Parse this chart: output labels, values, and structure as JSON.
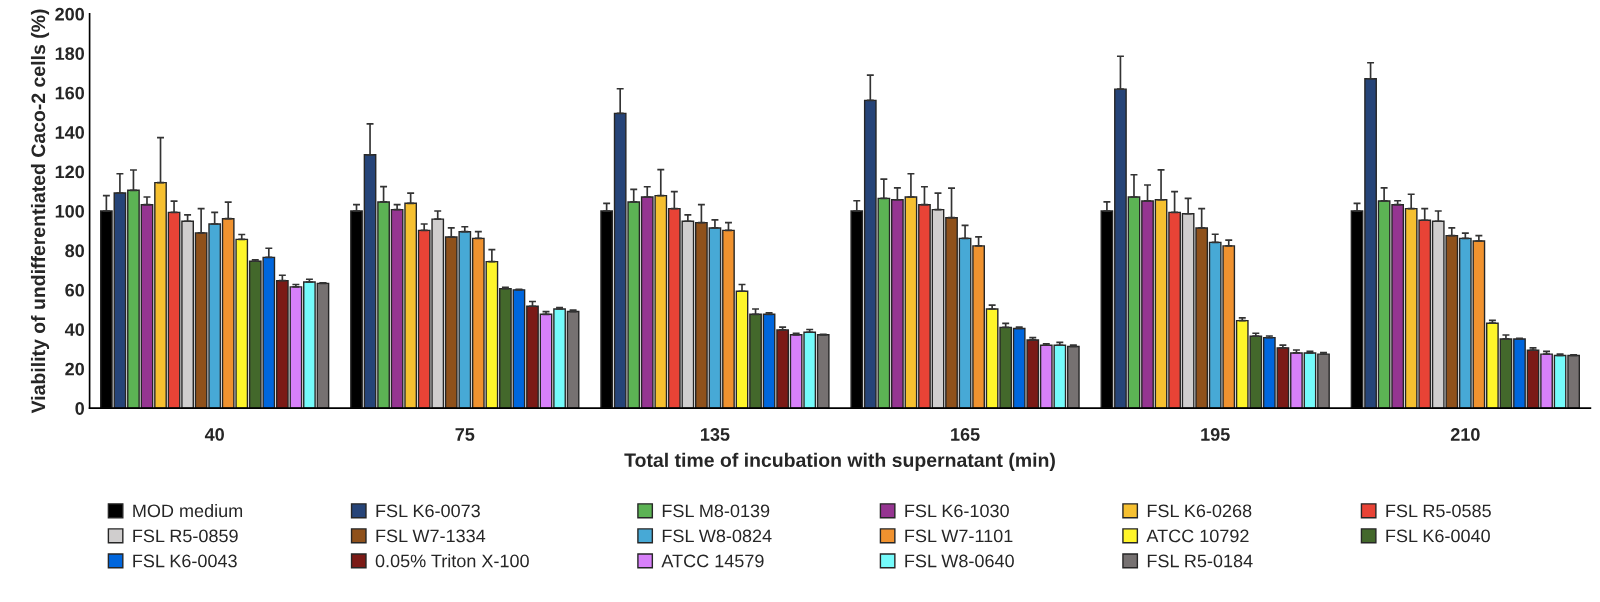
{
  "chart_data": {
    "type": "bar",
    "xlabel": "Total time of incubation with supernatant (min)",
    "ylabel": "Viability of undifferentiated Caco-2 cells (%)",
    "categories": [
      "40",
      "75",
      "135",
      "165",
      "195",
      "210"
    ],
    "ylim": [
      0,
      200
    ],
    "yticks": [
      0,
      20,
      40,
      60,
      80,
      100,
      120,
      140,
      160,
      180,
      200
    ],
    "grid": false,
    "legend": "bottom",
    "series": [
      {
        "name": "MOD medium",
        "color": "#000000",
        "values": [
          100,
          100,
          100,
          100,
          100,
          100
        ],
        "errors": [
          [
            100,
            107.8
          ],
          [
            100,
            103.2
          ],
          [
            100,
            103.9
          ],
          [
            100,
            105.2
          ],
          [
            100,
            104.6
          ],
          [
            100,
            103.9
          ]
        ]
      },
      {
        "name": "FSL K6-0073",
        "color": "#264478",
        "values": [
          109.1,
          128.5,
          149.5,
          156.1,
          161.8,
          167.1
        ],
        "errors": [
          [
            109.1,
            118.9
          ],
          [
            128.5,
            144.2
          ],
          [
            149.5,
            162.0
          ],
          [
            156.1,
            168.9
          ],
          [
            161.8,
            178.5
          ],
          [
            167.1,
            175.2
          ]
        ]
      },
      {
        "name": "FSL M8-0139",
        "color": "#5cb354",
        "values": [
          110.5,
          104.6,
          104.6,
          106.4,
          107.1,
          105.1
        ],
        "errors": [
          [
            110.5,
            120.8
          ],
          [
            104.6,
            112.4
          ],
          [
            104.6,
            111.0
          ],
          [
            106.4,
            116.2
          ],
          [
            107.1,
            118.4
          ],
          [
            105.1,
            111.7
          ]
        ]
      },
      {
        "name": "FSL K6-1030",
        "color": "#953591",
        "values": [
          103.2,
          100.7,
          107.1,
          105.7,
          105.1,
          103.2
        ],
        "errors": [
          [
            103.2,
            107.1
          ],
          [
            100.7,
            103.2
          ],
          [
            107.1,
            112.3
          ],
          [
            105.7,
            111.7
          ],
          [
            105.1,
            113.2
          ],
          [
            103.2,
            105.2
          ]
        ]
      },
      {
        "name": "FSL K6-0268",
        "color": "#f6c030",
        "values": [
          114.4,
          103.9,
          107.8,
          107.1,
          105.7,
          101.2
        ],
        "errors": [
          [
            114.4,
            137.2
          ],
          [
            103.9,
            109.1
          ],
          [
            107.8,
            121.0
          ],
          [
            107.1,
            118.9
          ],
          [
            105.7,
            120.9
          ],
          [
            101.2,
            108.5
          ]
        ]
      },
      {
        "name": "FSL R5-0585",
        "color": "#e84336",
        "values": [
          99.3,
          90.2,
          101.2,
          103.2,
          99.3,
          95.3
        ],
        "errors": [
          [
            99.3,
            105.0
          ],
          [
            90.2,
            93.4
          ],
          [
            101.2,
            109.8
          ],
          [
            103.2,
            112.3
          ],
          [
            99.3,
            109.8
          ],
          [
            95.3,
            101.2
          ]
        ]
      },
      {
        "name": "FSL R5-0859",
        "color": "#d0cece",
        "values": [
          94.8,
          95.9,
          94.8,
          100.7,
          98.6,
          94.8
        ],
        "errors": [
          [
            94.8,
            98.0
          ],
          [
            95.9,
            100.0
          ],
          [
            94.8,
            98.0
          ],
          [
            100.7,
            109.1
          ],
          [
            98.6,
            106.4
          ],
          [
            94.8,
            100.0
          ]
        ]
      },
      {
        "name": "FSL W7-1334",
        "color": "#8f511b",
        "values": [
          88.9,
          86.8,
          94.1,
          96.6,
          91.4,
          87.5
        ],
        "errors": [
          [
            88.9,
            101.2
          ],
          [
            86.8,
            91.4
          ],
          [
            94.1,
            103.2
          ],
          [
            96.6,
            111.6
          ],
          [
            91.4,
            101.2
          ],
          [
            87.5,
            91.4
          ]
        ]
      },
      {
        "name": "FSL W8-0824",
        "color": "#47a9d6",
        "values": [
          93.4,
          89.5,
          91.4,
          86.1,
          84.1,
          86.1
        ],
        "errors": [
          [
            93.4,
            99.3
          ],
          [
            89.5,
            92.0
          ],
          [
            91.4,
            95.5
          ],
          [
            86.1,
            92.7
          ],
          [
            84.1,
            88.2
          ],
          [
            86.1,
            88.8
          ]
        ]
      },
      {
        "name": "FSL W7-1101",
        "color": "#f0922f",
        "values": [
          96.1,
          86.1,
          90.2,
          82.3,
          82.3,
          84.8
        ],
        "errors": [
          [
            96.1,
            104.5
          ],
          [
            86.1,
            89.5
          ],
          [
            90.2,
            94.1
          ],
          [
            82.3,
            86.9
          ],
          [
            82.3,
            85.2
          ],
          [
            84.8,
            87.5
          ]
        ]
      },
      {
        "name": "ATCC 10792",
        "color": "#fff52a",
        "values": [
          85.6,
          74.3,
          59.3,
          50.3,
          44.4,
          43.1
        ],
        "errors": [
          [
            85.6,
            88.1
          ],
          [
            74.3,
            80.4
          ],
          [
            59.3,
            62.7
          ],
          [
            50.3,
            52.3
          ],
          [
            44.4,
            45.8
          ],
          [
            43.1,
            44.5
          ]
        ]
      },
      {
        "name": "FSL K6-0040",
        "color": "#43682b",
        "values": [
          74.5,
          60.6,
          47.6,
          41.0,
          36.5,
          35.1
        ],
        "errors": [
          [
            74.5,
            75.2
          ],
          [
            60.6,
            61.3
          ],
          [
            47.6,
            50.3
          ],
          [
            41.0,
            43.0
          ],
          [
            36.5,
            38.0
          ],
          [
            35.1,
            37.1
          ]
        ]
      },
      {
        "name": "FSL K6-0043",
        "color": "#0066dd",
        "values": [
          76.5,
          60.0,
          47.6,
          40.4,
          35.8,
          35.1
        ],
        "errors": [
          [
            76.5,
            81.1
          ],
          [
            60.0,
            60.3
          ],
          [
            47.6,
            48.3
          ],
          [
            40.4,
            41.1
          ],
          [
            35.8,
            36.6
          ],
          [
            35.1,
            35.4
          ]
        ]
      },
      {
        "name": "0.05% Triton X-100",
        "color": "#7b1a16",
        "values": [
          64.7,
          51.7,
          39.7,
          34.6,
          30.6,
          29.4
        ],
        "errors": [
          [
            64.7,
            67.4
          ],
          [
            51.7,
            54.1
          ],
          [
            39.7,
            41.1
          ],
          [
            34.6,
            35.8
          ],
          [
            30.6,
            32.0
          ],
          [
            29.4,
            30.6
          ]
        ]
      },
      {
        "name": "ATCC 14579",
        "color": "#d780f9",
        "values": [
          61.5,
          47.6,
          37.2,
          31.9,
          28.0,
          27.4
        ],
        "errors": [
          [
            61.5,
            62.7
          ],
          [
            47.6,
            49.0
          ],
          [
            37.2,
            38.0
          ],
          [
            31.9,
            32.6
          ],
          [
            28.0,
            29.5
          ],
          [
            27.4,
            28.8
          ]
        ]
      },
      {
        "name": "FSL W8-0640",
        "color": "#75fbfb",
        "values": [
          64.0,
          50.3,
          38.5,
          31.9,
          28.0,
          26.7
        ],
        "errors": [
          [
            64.0,
            65.4
          ],
          [
            50.3,
            51.0
          ],
          [
            38.5,
            39.9
          ],
          [
            31.9,
            33.4
          ],
          [
            28.0,
            28.8
          ],
          [
            26.7,
            27.4
          ]
        ]
      },
      {
        "name": "FSL R5-0184",
        "color": "#767171",
        "values": [
          63.3,
          49.0,
          37.2,
          31.3,
          27.4,
          26.7
        ],
        "errors": [
          [
            63.3,
            63.6
          ],
          [
            49.0,
            49.7
          ],
          [
            37.2,
            37.5
          ],
          [
            31.3,
            32.0
          ],
          [
            27.4,
            28.2
          ],
          [
            26.7,
            27.0
          ]
        ]
      }
    ]
  }
}
